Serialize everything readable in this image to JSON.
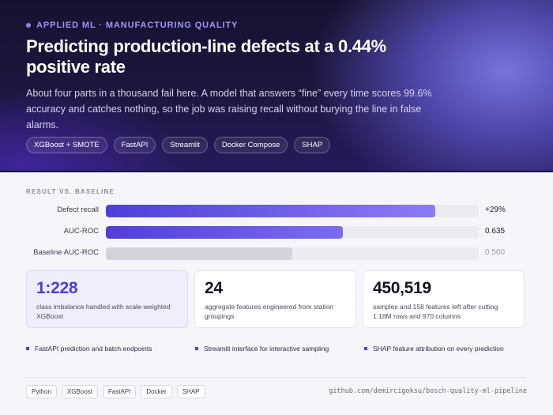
{
  "hero": {
    "eyebrow": "Applied ML · Manufacturing Quality",
    "title": "Predicting production-line defects at a 0.44% positive rate",
    "lede": "About four parts in a thousand fail here. A model that answers “fine” every time scores 99.6% accuracy and catches nothing, so the job was raising recall without burying the line in false alarms.",
    "chips": [
      "XGBoost + SMOTE",
      "FastAPI",
      "Streamlit",
      "Docker Compose",
      "SHAP"
    ]
  },
  "results": {
    "section_label": "Result vs. baseline",
    "bars": [
      {
        "label": "Defect recall",
        "value": "+29%",
        "level": 0.884
      },
      {
        "label": "AUC-ROC",
        "value": "0.635",
        "level": 0.635
      },
      {
        "label": "Baseline AUC-ROC",
        "value": "0.500",
        "level": 0.5
      }
    ]
  },
  "stats": [
    {
      "number": "1:228",
      "description": "class imbalance handled with scale-weighted XGBoost"
    },
    {
      "number": "24",
      "description": "aggregate features engineered from station groupings"
    },
    {
      "number": "450,519",
      "description": "samples and 158 features left after cutting 1.18M rows and 970 columns"
    }
  ],
  "features": [
    "FastAPI prediction and batch endpoints",
    "Streamlit interface for interactive sampling",
    "SHAP feature attribution on every prediction"
  ],
  "footer": {
    "tags": [
      "Python",
      "XGBoost",
      "FastAPI",
      "Docker",
      "SHAP"
    ],
    "repo": "github.com/demircigoksu/bosch-quality-ml-pipeline"
  },
  "colors": {
    "accent": "#4a3ce0",
    "hero_bg": "#1d1640",
    "eyebrow": "#9d95ff"
  }
}
